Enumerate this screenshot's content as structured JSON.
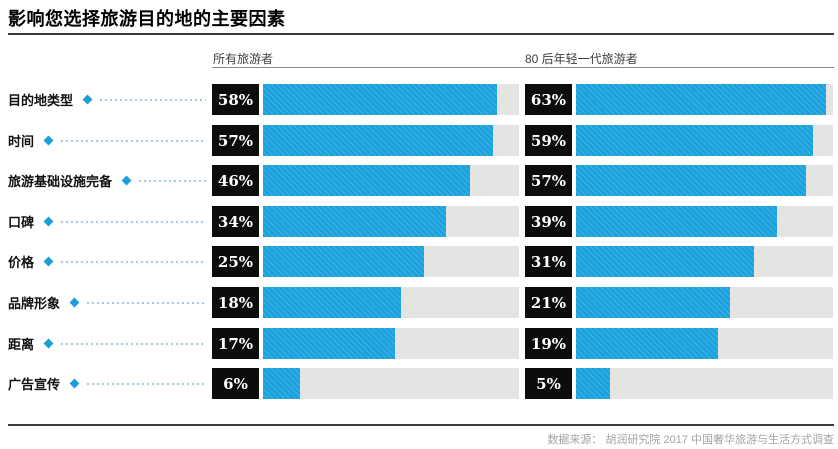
{
  "title": "影响您选择旅游目的地的主要因素",
  "source": "数据来源： 胡润研究院 2017 中国奢华旅游与生活方式调查",
  "chart_data": {
    "type": "bar",
    "orientation": "horizontal",
    "title": "影响您选择旅游目的地的主要因素",
    "categories": [
      "目的地类型",
      "时间",
      "旅游基础设施完备",
      "口碑",
      "价格",
      "品牌形象",
      "距离",
      "广告宣传"
    ],
    "series": [
      {
        "name": "所有旅游者",
        "values": [
          58,
          57,
          46,
          34,
          25,
          18,
          17,
          6
        ]
      },
      {
        "name": "80 后年轻一代旅游者",
        "values": [
          63,
          59,
          57,
          39,
          31,
          21,
          19,
          5
        ]
      }
    ],
    "value_unit": "%",
    "value_labels": [
      [
        "58%",
        "57%",
        "46%",
        "34%",
        "25%",
        "18%",
        "17%",
        "6%"
      ],
      [
        "63%",
        "59%",
        "57%",
        "39%",
        "31%",
        "21%",
        "19%",
        "5%"
      ]
    ],
    "layout_hints": {
      "grid": false,
      "legend_position": "column headers above each bar group",
      "value_labels_style": "white serif numerals in black boxes left of bars",
      "category_marker": "blue diamond with dotted leader line",
      "bar_track_fractions": [
        [
          0.914,
          0.898,
          0.809,
          0.715,
          0.628,
          0.539,
          0.514,
          0.146
        ],
        [
          0.971,
          0.924,
          0.893,
          0.783,
          0.693,
          0.6,
          0.553,
          0.131
        ]
      ]
    }
  },
  "colors": {
    "bar": "#1ba2dd",
    "bar_hatch": "rgba(255,255,255,0.16)",
    "track": "#e4e4e2",
    "value_box": "#0c0c0c",
    "value_text": "#ffffff",
    "diamond": "#1b9fd8",
    "leader_dots": "#a5c9da",
    "rule_dark": "#3a3a3a",
    "rule_thin": "#8a8a8a",
    "header_text": "#3f3f3f",
    "source_text": "#a3a3a3"
  }
}
